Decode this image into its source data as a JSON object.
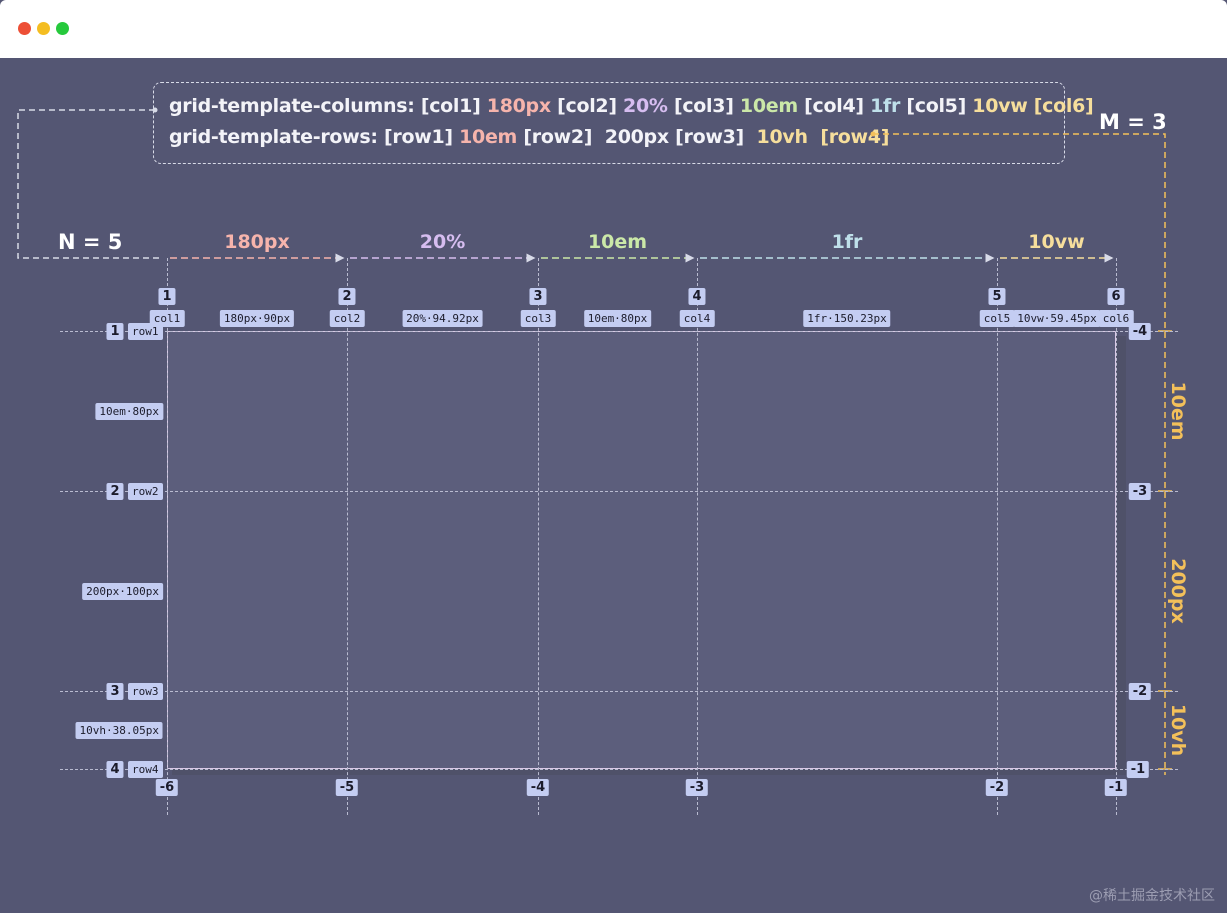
{
  "code": {
    "columns_line": [
      {
        "text": "grid-template-columns:",
        "tone": "white"
      },
      {
        "text": " [col1]",
        "tone": "white"
      },
      {
        "text": " 180px",
        "tone": "pink"
      },
      {
        "text": " [col2]",
        "tone": "white"
      },
      {
        "text": " 20%",
        "tone": "lav"
      },
      {
        "text": " [col3]",
        "tone": "white"
      },
      {
        "text": " 10em",
        "tone": "green"
      },
      {
        "text": " [col4]",
        "tone": "white"
      },
      {
        "text": " 1fr",
        "tone": "cyan"
      },
      {
        "text": " [col5]",
        "tone": "white"
      },
      {
        "text": " 10vw",
        "tone": "yellow"
      },
      {
        "text": " [col6]",
        "tone": "yellow"
      }
    ],
    "rows_line": [
      {
        "text": "grid-template-rows:",
        "tone": "white"
      },
      {
        "text": " [row1]",
        "tone": "white"
      },
      {
        "text": " 10em",
        "tone": "pink"
      },
      {
        "text": " [row2]",
        "tone": "white"
      },
      {
        "text": "  200px",
        "tone": "white"
      },
      {
        "text": " [row3]",
        "tone": "white"
      },
      {
        "text": "  10vh",
        "tone": "yellow"
      },
      {
        "text": "  [row4]",
        "tone": "yellow"
      }
    ]
  },
  "labels": {
    "n_count": "N = 5",
    "m_count": "M = 3"
  },
  "column_tracks": [
    {
      "size": "180px",
      "color": "#f6b4ac"
    },
    {
      "size": "20%",
      "color": "#d6bdf0"
    },
    {
      "size": "10em",
      "color": "#cbe8a8"
    },
    {
      "size": "1fr",
      "color": "#bfe0ea"
    },
    {
      "size": "10vw",
      "color": "#f6de9c"
    }
  ],
  "row_tracks": [
    "10em",
    "200px",
    "10vh"
  ],
  "column_lines": [
    {
      "number": "1",
      "name": "col1",
      "negative": "-6"
    },
    {
      "number": "2",
      "name": "col2",
      "negative": "-5"
    },
    {
      "number": "3",
      "name": "col3",
      "negative": "-4"
    },
    {
      "number": "4",
      "name": "col4",
      "negative": "-3"
    },
    {
      "number": "5",
      "name": "col5",
      "negative": "-2"
    },
    {
      "number": "6",
      "name": "col6",
      "negative": "-1"
    }
  ],
  "column_sizes": [
    "180px·90px",
    "20%·94.92px",
    "10em·80px",
    "1fr·150.23px",
    "10vw·59.45px"
  ],
  "row_lines": [
    {
      "number": "1",
      "name": "row1",
      "negative": "-4"
    },
    {
      "number": "2",
      "name": "row2",
      "negative": "-3"
    },
    {
      "number": "3",
      "name": "row3",
      "negative": "-2"
    },
    {
      "number": "4",
      "name": "row4",
      "negative": "-1"
    }
  ],
  "row_sizes": [
    "10em·80px",
    "200px·100px",
    "10vh·38.05px"
  ],
  "watermark": "@稀土掘金技术社区"
}
